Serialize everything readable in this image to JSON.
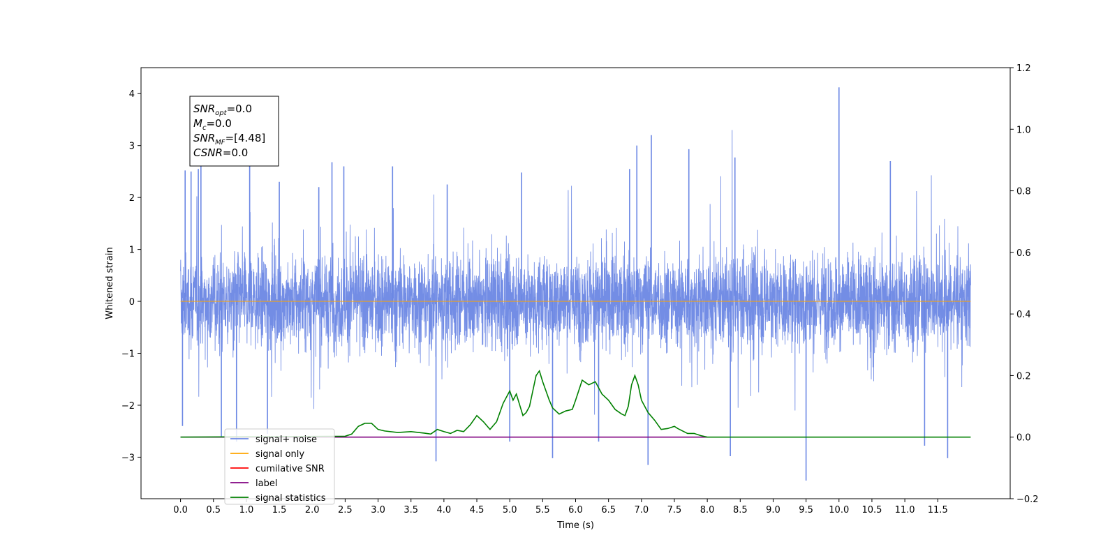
{
  "chart_data": {
    "type": "line",
    "xlabel": "Time (s)",
    "ylabel": "Whitened strain",
    "xlim": [
      -0.6,
      12.6
    ],
    "ylim": [
      -3.8,
      4.5
    ],
    "y2lim": [
      -0.2,
      1.2
    ],
    "x_ticks": [
      0.0,
      0.5,
      1.0,
      1.5,
      2.0,
      2.5,
      3.0,
      3.5,
      4.0,
      4.5,
      5.0,
      5.5,
      6.0,
      6.5,
      7.0,
      7.5,
      8.0,
      8.5,
      9.0,
      9.5,
      10.0,
      10.5,
      11.0,
      11.5
    ],
    "x_tick_labels": [
      "0.0",
      "0.5",
      "1.0",
      "1.5",
      "2.0",
      "2.5",
      "3.0",
      "3.5",
      "4.0",
      "4.5",
      "5.0",
      "5.5",
      "6.0",
      "6.5",
      "7.0",
      "7.5",
      "8.0",
      "8.5",
      "9.0",
      "9.5",
      "10.0",
      "10.5",
      "11.0",
      "11.5"
    ],
    "y_ticks": [
      -3,
      -2,
      -1,
      0,
      1,
      2,
      3,
      4
    ],
    "y_tick_labels": [
      "−3",
      "−2",
      "−1",
      "0",
      "1",
      "2",
      "3",
      "4"
    ],
    "y2_ticks": [
      -0.2,
      0.0,
      0.2,
      0.4,
      0.6,
      0.8,
      1.0,
      1.2
    ],
    "y2_tick_labels": [
      "−0.2",
      "0.0",
      "0.2",
      "0.4",
      "0.6",
      "0.8",
      "1.0",
      "1.2"
    ],
    "grid": false,
    "legend_placement": "lower-left",
    "colors": {
      "signal_noise": "#6b87e4",
      "signal_only": "#ffa500",
      "cumulative_snr": "#ff0000",
      "label": "#800080",
      "signal_statistics": "#008000"
    },
    "series": [
      {
        "name": "signal+ noise",
        "axis": "left",
        "description_range": [
          0.0,
          12.0
        ],
        "envelope_typical": [
          -1.7,
          1.9
        ],
        "spikes": [
          {
            "x": 0.03,
            "y": -2.4
          },
          {
            "x": 0.07,
            "y": 2.52
          },
          {
            "x": 0.16,
            "y": 2.5
          },
          {
            "x": 0.27,
            "y": 2.55
          },
          {
            "x": 0.31,
            "y": 2.66
          },
          {
            "x": 0.62,
            "y": -2.6
          },
          {
            "x": 0.85,
            "y": -2.7
          },
          {
            "x": 1.05,
            "y": 2.62
          },
          {
            "x": 1.32,
            "y": -2.55
          },
          {
            "x": 1.5,
            "y": 2.3
          },
          {
            "x": 2.1,
            "y": 2.2
          },
          {
            "x": 2.3,
            "y": 2.68
          },
          {
            "x": 2.48,
            "y": 2.6
          },
          {
            "x": 3.22,
            "y": 2.6
          },
          {
            "x": 3.88,
            "y": -3.08
          },
          {
            "x": 4.05,
            "y": 2.25
          },
          {
            "x": 5.0,
            "y": -2.7
          },
          {
            "x": 5.18,
            "y": 2.48
          },
          {
            "x": 5.65,
            "y": -3.02
          },
          {
            "x": 6.35,
            "y": -2.7
          },
          {
            "x": 6.82,
            "y": 2.55
          },
          {
            "x": 6.93,
            "y": 3.0
          },
          {
            "x": 7.1,
            "y": -3.15
          },
          {
            "x": 7.15,
            "y": 3.2
          },
          {
            "x": 7.72,
            "y": 2.93
          },
          {
            "x": 8.35,
            "y": -2.98
          },
          {
            "x": 8.42,
            "y": 2.77
          },
          {
            "x": 9.5,
            "y": -3.45
          },
          {
            "x": 10.0,
            "y": 4.12
          },
          {
            "x": 10.78,
            "y": 2.7
          },
          {
            "x": 11.3,
            "y": -2.78
          },
          {
            "x": 11.65,
            "y": -3.02
          }
        ]
      },
      {
        "name": "signal only",
        "axis": "left",
        "x": [
          0.0,
          12.0
        ],
        "y": [
          0.0,
          0.0
        ]
      },
      {
        "name": "cumilative SNR",
        "axis": "right",
        "x": [],
        "y": []
      },
      {
        "name": "label",
        "axis": "right",
        "x": [
          0.0,
          8.0
        ],
        "y": [
          0.0,
          0.0
        ]
      },
      {
        "name": "signal statistics",
        "axis": "right",
        "x": [
          0.0,
          2.5,
          2.6,
          2.7,
          2.8,
          2.9,
          3.0,
          3.1,
          3.3,
          3.5,
          3.7,
          3.8,
          3.9,
          4.0,
          4.1,
          4.2,
          4.3,
          4.4,
          4.5,
          4.6,
          4.7,
          4.8,
          4.9,
          5.0,
          5.05,
          5.1,
          5.2,
          5.25,
          5.3,
          5.35,
          5.4,
          5.45,
          5.5,
          5.6,
          5.65,
          5.75,
          5.85,
          5.95,
          6.0,
          6.1,
          6.2,
          6.3,
          6.4,
          6.5,
          6.6,
          6.7,
          6.75,
          6.8,
          6.85,
          6.9,
          6.95,
          7.0,
          7.1,
          7.2,
          7.3,
          7.4,
          7.5,
          7.55,
          7.7,
          7.8,
          7.9,
          8.0,
          12.0
        ],
        "y": [
          0.0,
          0.003,
          0.01,
          0.035,
          0.045,
          0.045,
          0.025,
          0.02,
          0.015,
          0.018,
          0.013,
          0.01,
          0.025,
          0.018,
          0.012,
          0.022,
          0.018,
          0.04,
          0.07,
          0.05,
          0.025,
          0.05,
          0.11,
          0.15,
          0.12,
          0.14,
          0.07,
          0.08,
          0.1,
          0.15,
          0.2,
          0.215,
          0.18,
          0.12,
          0.095,
          0.075,
          0.085,
          0.09,
          0.12,
          0.185,
          0.17,
          0.18,
          0.14,
          0.12,
          0.09,
          0.075,
          0.07,
          0.1,
          0.17,
          0.2,
          0.17,
          0.12,
          0.08,
          0.055,
          0.025,
          0.028,
          0.035,
          0.028,
          0.012,
          0.012,
          0.005,
          0.0,
          0.0
        ]
      }
    ],
    "stats_box": {
      "lines": [
        {
          "base": "SNR",
          "sub": "opt",
          "value": "=0.0"
        },
        {
          "base": "M",
          "sub": "c",
          "value": "=0.0"
        },
        {
          "base": "SNR",
          "sub": "MF",
          "value": "=[4.48]"
        },
        {
          "base": "CSNR",
          "sub": "",
          "value": "=0.0"
        }
      ]
    },
    "legend": {
      "items": [
        {
          "label": "signal+ noise",
          "color": "#6b87e4"
        },
        {
          "label": "signal only",
          "color": "#ffa500"
        },
        {
          "label": "cumilative SNR",
          "color": "#ff0000"
        },
        {
          "label": "label",
          "color": "#800080"
        },
        {
          "label": "signal statistics",
          "color": "#008000"
        }
      ]
    }
  }
}
